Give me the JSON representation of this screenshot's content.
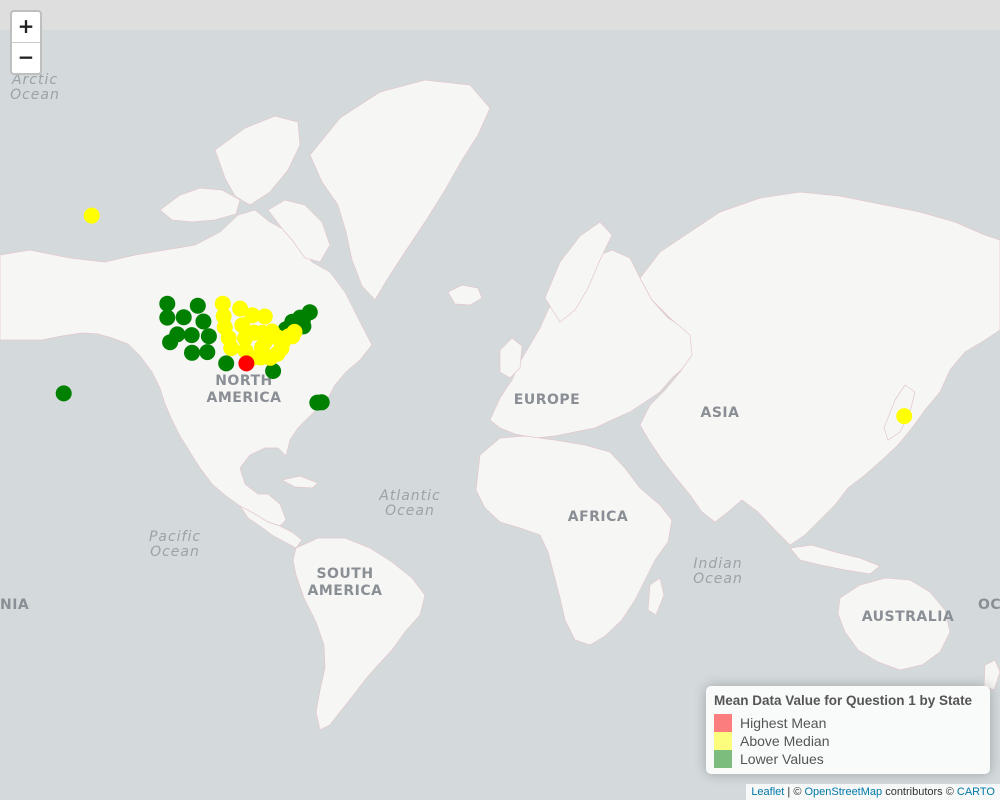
{
  "zoom": {
    "in_label": "+",
    "out_label": "−"
  },
  "colors": {
    "land": "#f6f6f4",
    "water": "#d4dadc",
    "border": "#e3c7cc",
    "highest": "#ff0000",
    "above": "#ffff00",
    "lower": "#008000"
  },
  "labels": {
    "continents": {
      "north_america_1": "NORTH",
      "north_america_2": "AMERICA",
      "south_america_1": "SOUTH",
      "south_america_2": "AMERICA",
      "europe": "EUROPE",
      "asia": "ASIA",
      "africa": "AFRICA",
      "australia": "AUSTRALIA",
      "oceania_left": "NIA",
      "oceania_right": "OC"
    },
    "oceans": {
      "arctic_1": "Arctic",
      "arctic_2": "Ocean",
      "atlantic_1": "Atlantic",
      "atlantic_2": "Ocean",
      "pacific_1": "Pacific",
      "pacific_2": "Ocean",
      "indian_1": "Indian",
      "indian_2": "Ocean"
    }
  },
  "legend": {
    "title": "Mean Data Value for Question 1 by State",
    "items": [
      {
        "label": "Highest Mean",
        "color": "#ff0000"
      },
      {
        "label": "Above Median",
        "color": "#ffff00"
      },
      {
        "label": "Lower Values",
        "color": "#008000"
      }
    ]
  },
  "attribution": {
    "leaflet": "Leaflet",
    "sep": " | © ",
    "osm": "OpenStreetMap",
    "contrib": " contributors © ",
    "carto": "CARTO"
  },
  "markers": [
    {
      "lat": 64.8,
      "lon": -147.7,
      "cat": "above"
    },
    {
      "lat": 21.3,
      "lon": -157.8,
      "cat": "lower"
    },
    {
      "lat": 13.5,
      "lon": 144.8,
      "cat": "above"
    },
    {
      "lat": 18.2,
      "lon": -66.5,
      "cat": "lower"
    },
    {
      "lat": 18.3,
      "lon": -64.9,
      "cat": "lower"
    },
    {
      "lat": 47.5,
      "lon": -120.5,
      "cat": "lower"
    },
    {
      "lat": 44.0,
      "lon": -120.5,
      "cat": "lower"
    },
    {
      "lat": 37.3,
      "lon": -119.5,
      "cat": "lower"
    },
    {
      "lat": 39.5,
      "lon": -116.9,
      "cat": "lower"
    },
    {
      "lat": 44.1,
      "lon": -114.6,
      "cat": "lower"
    },
    {
      "lat": 47.0,
      "lon": -109.5,
      "cat": "lower"
    },
    {
      "lat": 43.0,
      "lon": -107.5,
      "cat": "lower"
    },
    {
      "lat": 39.3,
      "lon": -111.7,
      "cat": "lower"
    },
    {
      "lat": 34.2,
      "lon": -111.6,
      "cat": "lower"
    },
    {
      "lat": 39.0,
      "lon": -105.5,
      "cat": "lower"
    },
    {
      "lat": 34.4,
      "lon": -106.1,
      "cat": "lower"
    },
    {
      "lat": 47.5,
      "lon": -100.5,
      "cat": "above"
    },
    {
      "lat": 44.4,
      "lon": -100.2,
      "cat": "above"
    },
    {
      "lat": 41.5,
      "lon": -99.8,
      "cat": "above"
    },
    {
      "lat": 38.5,
      "lon": -98.4,
      "cat": "above"
    },
    {
      "lat": 35.6,
      "lon": -97.5,
      "cat": "above"
    },
    {
      "lat": 31.0,
      "lon": -99.3,
      "cat": "lower"
    },
    {
      "lat": 46.3,
      "lon": -94.3,
      "cat": "above"
    },
    {
      "lat": 42.0,
      "lon": -93.5,
      "cat": "above"
    },
    {
      "lat": 38.4,
      "lon": -92.5,
      "cat": "above"
    },
    {
      "lat": 34.9,
      "lon": -92.4,
      "cat": "above"
    },
    {
      "lat": 31.0,
      "lon": -92.0,
      "cat": "highest"
    },
    {
      "lat": 44.6,
      "lon": -89.9,
      "cat": "above"
    },
    {
      "lat": 40.0,
      "lon": -89.2,
      "cat": "above"
    },
    {
      "lat": 32.7,
      "lon": -89.7,
      "cat": "above"
    },
    {
      "lat": 44.3,
      "lon": -85.4,
      "cat": "above"
    },
    {
      "lat": 39.9,
      "lon": -86.3,
      "cat": "above"
    },
    {
      "lat": 37.5,
      "lon": -85.3,
      "cat": "above"
    },
    {
      "lat": 35.8,
      "lon": -86.4,
      "cat": "above"
    },
    {
      "lat": 32.8,
      "lon": -86.8,
      "cat": "above"
    },
    {
      "lat": 40.3,
      "lon": -82.8,
      "cat": "above"
    },
    {
      "lat": 38.6,
      "lon": -80.6,
      "cat": "above"
    },
    {
      "lat": 32.7,
      "lon": -83.4,
      "cat": "above"
    },
    {
      "lat": 28.6,
      "lon": -82.4,
      "cat": "lower"
    },
    {
      "lat": 33.9,
      "lon": -80.9,
      "cat": "above"
    },
    {
      "lat": 35.5,
      "lon": -79.4,
      "cat": "above"
    },
    {
      "lat": 37.5,
      "lon": -78.8,
      "cat": "above"
    },
    {
      "lat": 38.9,
      "lon": -77.0,
      "cat": "lower"
    },
    {
      "lat": 39.0,
      "lon": -76.8,
      "cat": "above"
    },
    {
      "lat": 39.0,
      "lon": -75.5,
      "cat": "above"
    },
    {
      "lat": 40.9,
      "lon": -77.8,
      "cat": "lower"
    },
    {
      "lat": 40.2,
      "lon": -74.7,
      "cat": "above"
    },
    {
      "lat": 42.9,
      "lon": -75.5,
      "cat": "lower"
    },
    {
      "lat": 41.6,
      "lon": -72.7,
      "cat": "lower"
    },
    {
      "lat": 41.7,
      "lon": -71.5,
      "cat": "lower"
    },
    {
      "lat": 42.3,
      "lon": -71.8,
      "cat": "lower"
    },
    {
      "lat": 44.0,
      "lon": -72.7,
      "cat": "lower"
    },
    {
      "lat": 43.7,
      "lon": -71.6,
      "cat": "lower"
    },
    {
      "lat": 45.4,
      "lon": -69.2,
      "cat": "lower"
    }
  ]
}
